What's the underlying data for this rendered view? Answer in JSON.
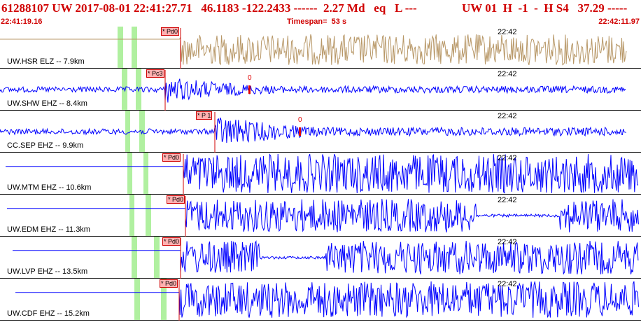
{
  "header": {
    "event_line": "61288107 UW 2017-08-01 22:41:27.71   46.1183 -122.2433 ------  2.27 Md   eq   L ---",
    "station_line": "UW 01  H  -1  -  H S4   37.29 -----",
    "start_time": "22:41:19.16",
    "timespan": "Timespan=  53 s",
    "end_time": "22:42:11.97"
  },
  "colors": {
    "header_text": "#d00000",
    "trace_primary": "#0000ff",
    "trace_first": "#b89868",
    "pick_line": "#d00000",
    "s_window": "#b0f0a0",
    "divider": "#000000"
  },
  "traces": [
    {
      "label": "UW.HSR ELZ -- 7.9km",
      "time_mark": "22:42",
      "pick": "Pd0",
      "amp_marker": ""
    },
    {
      "label": "UW.SHW EHZ -- 8.4km",
      "time_mark": "22:42",
      "pick": "Pc3",
      "amp_marker": "0"
    },
    {
      "label": "CC.SEP EHZ -- 9.9km",
      "time_mark": "22:42",
      "pick": "P 1",
      "amp_marker": "0"
    },
    {
      "label": "UW.MTM EHZ -- 10.6km",
      "time_mark": "22:42",
      "pick": "Pd0",
      "amp_marker": ""
    },
    {
      "label": "UW.EDM EHZ -- 11.3km",
      "time_mark": "22:42",
      "pick": "Pd0",
      "amp_marker": ""
    },
    {
      "label": "UW.LVP EHZ -- 13.5km",
      "time_mark": "22:42",
      "pick": "Pd0",
      "amp_marker": ""
    },
    {
      "label": "UW.CDF EHZ -- 15.2km",
      "time_mark": "22:42",
      "pick": "Pd0",
      "amp_marker": ""
    }
  ]
}
